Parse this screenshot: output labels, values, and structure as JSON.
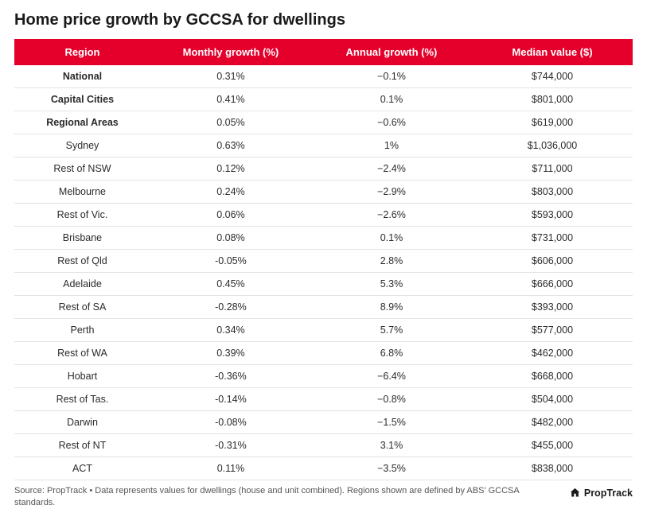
{
  "title": "Home price growth by GCCSA for dwellings",
  "table": {
    "header_bg": "#e4002b",
    "header_color": "#ffffff",
    "row_border": "#e3e3e3",
    "columns": [
      "Region",
      "Monthly growth (%)",
      "Annual growth (%)",
      "Median value ($)"
    ],
    "rows": [
      {
        "region": "National",
        "monthly": "0.31%",
        "annual": "−0.1%",
        "median": "$744,000",
        "bold": true
      },
      {
        "region": "Capital Cities",
        "monthly": "0.41%",
        "annual": "0.1%",
        "median": "$801,000",
        "bold": true
      },
      {
        "region": "Regional Areas",
        "monthly": "0.05%",
        "annual": "−0.6%",
        "median": "$619,000",
        "bold": true
      },
      {
        "region": "Sydney",
        "monthly": "0.63%",
        "annual": "1%",
        "median": "$1,036,000",
        "bold": false
      },
      {
        "region": "Rest of NSW",
        "monthly": "0.12%",
        "annual": "−2.4%",
        "median": "$711,000",
        "bold": false
      },
      {
        "region": "Melbourne",
        "monthly": "0.24%",
        "annual": "−2.9%",
        "median": "$803,000",
        "bold": false
      },
      {
        "region": "Rest of Vic.",
        "monthly": "0.06%",
        "annual": "−2.6%",
        "median": "$593,000",
        "bold": false
      },
      {
        "region": "Brisbane",
        "monthly": "0.08%",
        "annual": "0.1%",
        "median": "$731,000",
        "bold": false
      },
      {
        "region": "Rest of Qld",
        "monthly": "-0.05%",
        "annual": "2.8%",
        "median": "$606,000",
        "bold": false
      },
      {
        "region": "Adelaide",
        "monthly": "0.45%",
        "annual": "5.3%",
        "median": "$666,000",
        "bold": false
      },
      {
        "region": "Rest of SA",
        "monthly": "-0.28%",
        "annual": "8.9%",
        "median": "$393,000",
        "bold": false
      },
      {
        "region": "Perth",
        "monthly": "0.34%",
        "annual": "5.7%",
        "median": "$577,000",
        "bold": false
      },
      {
        "region": "Rest of WA",
        "monthly": "0.39%",
        "annual": "6.8%",
        "median": "$462,000",
        "bold": false
      },
      {
        "region": "Hobart",
        "monthly": "-0.36%",
        "annual": "−6.4%",
        "median": "$668,000",
        "bold": false
      },
      {
        "region": "Rest of Tas.",
        "monthly": "-0.14%",
        "annual": "−0.8%",
        "median": "$504,000",
        "bold": false
      },
      {
        "region": "Darwin",
        "monthly": "-0.08%",
        "annual": "−1.5%",
        "median": "$482,000",
        "bold": false
      },
      {
        "region": "Rest of NT",
        "monthly": "-0.31%",
        "annual": "3.1%",
        "median": "$455,000",
        "bold": false
      },
      {
        "region": "ACT",
        "monthly": "0.11%",
        "annual": "−3.5%",
        "median": "$838,000",
        "bold": false
      }
    ]
  },
  "source": "Source: PropTrack • Data represents values for dwellings (house and unit combined). Regions shown are defined by ABS' GCCSA standards.",
  "brand": "PropTrack"
}
